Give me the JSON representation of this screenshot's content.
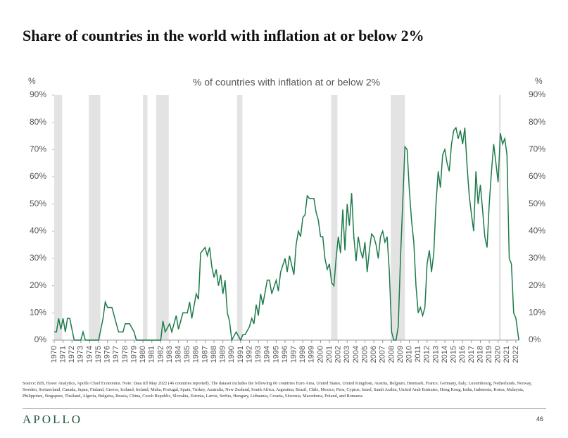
{
  "chart_data": {
    "type": "line",
    "title": "Share of countries in the world with inflation at or below 2%",
    "subtitle": "% of countries with inflation at or below 2%",
    "y_label": "%",
    "y2_label": "%",
    "x": [
      1970,
      1970.25,
      1970.5,
      1970.75,
      1971,
      1971.25,
      1971.5,
      1971.75,
      1972,
      1972.25,
      1972.75,
      1973,
      1973.25,
      1973.5,
      1974,
      1975,
      1975.5,
      1975.75,
      1976,
      1976.5,
      1977,
      1977.25,
      1977.75,
      1978,
      1978.5,
      1979,
      1979.25,
      1980,
      1981,
      1982,
      1982.25,
      1982.5,
      1983,
      1983.25,
      1983.75,
      1984,
      1984.5,
      1985,
      1985.25,
      1985.5,
      1986,
      1986.25,
      1986.5,
      1986.75,
      1987,
      1987.25,
      1987.5,
      1987.75,
      1988,
      1988.25,
      1988.5,
      1988.75,
      1989,
      1989.25,
      1989.5,
      1989.75,
      1990,
      1990.5,
      1991,
      1991.25,
      1991.5,
      1992,
      1992.25,
      1992.5,
      1992.75,
      1993,
      1993.25,
      1993.5,
      1994,
      1994.25,
      1994.5,
      1995,
      1995.25,
      1995.5,
      1996,
      1996.25,
      1996.5,
      1997,
      1997.25,
      1997.5,
      1997.75,
      1998,
      1998.25,
      1998.5,
      1998.75,
      1999,
      1999.25,
      1999.5,
      1999.75,
      2000,
      2000.25,
      2000.5,
      2000.75,
      2001,
      2001.25,
      2001.5,
      2001.75,
      2002,
      2002.25,
      2002.5,
      2002.75,
      2003,
      2003.25,
      2003.5,
      2003.75,
      2004,
      2004.25,
      2004.5,
      2004.75,
      2005,
      2005.25,
      2005.5,
      2005.75,
      2006,
      2006.25,
      2006.5,
      2006.75,
      2007,
      2007.25,
      2007.5,
      2007.75,
      2008,
      2008.25,
      2008.5,
      2008.75,
      2009,
      2009.25,
      2009.5,
      2009.75,
      2010,
      2010.25,
      2010.5,
      2010.75,
      2011,
      2011.25,
      2011.5,
      2011.75,
      2012,
      2012.25,
      2012.5,
      2012.75,
      2013,
      2013.25,
      2013.5,
      2013.75,
      2014,
      2014.25,
      2014.5,
      2014.75,
      2015,
      2015.25,
      2015.5,
      2015.75,
      2016,
      2016.25,
      2016.5,
      2016.75,
      2017,
      2017.25,
      2017.5,
      2017.75,
      2018,
      2018.25,
      2018.5,
      2018.75,
      2019,
      2019.25,
      2019.5,
      2019.75,
      2020,
      2020.25,
      2020.5,
      2020.75,
      2021,
      2021.25,
      2021.5,
      2021.75,
      2022,
      2022.25,
      2022.33
    ],
    "series": [
      {
        "name": "% of countries with inflation at or below 2%",
        "color": "#1e7b4a",
        "values": [
          3,
          3,
          8,
          4,
          8,
          3,
          8,
          8,
          4,
          0,
          0,
          0,
          3,
          0,
          0,
          0,
          8,
          14,
          12,
          12,
          6,
          3,
          3,
          6,
          6,
          3,
          0,
          0,
          0,
          0,
          7,
          3,
          6,
          3,
          9,
          4,
          10,
          10,
          14,
          8,
          17,
          15,
          32,
          33,
          34,
          31,
          34,
          27,
          23,
          26,
          20,
          24,
          17,
          22,
          10,
          7,
          0,
          3,
          0,
          2,
          2,
          5,
          8,
          6,
          13,
          9,
          17,
          13,
          22,
          22,
          17,
          22,
          18,
          25,
          30,
          25,
          31,
          24,
          35,
          40,
          38,
          45,
          46,
          53,
          52,
          52,
          52,
          47,
          44,
          38,
          38,
          30,
          26,
          28,
          21,
          20,
          30,
          38,
          32,
          48,
          33,
          50,
          42,
          54,
          38,
          29,
          38,
          33,
          30,
          36,
          25,
          33,
          39,
          38,
          35,
          30,
          38,
          40,
          36,
          38,
          25,
          3,
          0,
          0,
          5,
          30,
          50,
          71,
          70,
          55,
          44,
          36,
          20,
          10,
          12,
          9,
          12,
          28,
          33,
          25,
          32,
          50,
          62,
          56,
          68,
          70,
          65,
          62,
          72,
          77,
          78,
          74,
          77,
          72,
          78,
          64,
          53,
          46,
          40,
          62,
          50,
          57,
          48,
          38,
          34,
          50,
          62,
          72,
          65,
          58,
          76,
          72,
          74,
          68,
          30,
          28,
          10,
          8,
          2,
          0
        ]
      }
    ],
    "xlim": [
      1970,
      2022.4
    ],
    "xticks": [
      1970,
      1971,
      1972,
      1973,
      1974,
      1975,
      1976,
      1977,
      1978,
      1979,
      1980,
      1981,
      1982,
      1983,
      1984,
      1985,
      1986,
      1987,
      1988,
      1989,
      1990,
      1991,
      1992,
      1993,
      1994,
      1995,
      1996,
      1997,
      1998,
      1999,
      2000,
      2001,
      2002,
      2003,
      2004,
      2005,
      2006,
      2007,
      2008,
      2009,
      2010,
      2011,
      2012,
      2013,
      2014,
      2015,
      2016,
      2017,
      2018,
      2019,
      2020,
      2021,
      2022
    ],
    "ylim": [
      0,
      90
    ],
    "yticks": [
      {
        "value": 0,
        "label": "0%"
      },
      {
        "value": 10,
        "label": "10%"
      },
      {
        "value": 20,
        "label": "20%"
      },
      {
        "value": 30,
        "label": "30%"
      },
      {
        "value": 40,
        "label": "40%"
      },
      {
        "value": 50,
        "label": "50%"
      },
      {
        "value": 60,
        "label": "60%"
      },
      {
        "value": 70,
        "label": "70%"
      },
      {
        "value": 80,
        "label": "80%"
      },
      {
        "value": 90,
        "label": "90%"
      }
    ],
    "y2lim": [
      0,
      90
    ],
    "y2ticks": [
      {
        "value": 0,
        "label": "0%"
      },
      {
        "value": 10,
        "label": "10%"
      },
      {
        "value": 20,
        "label": "20%"
      },
      {
        "value": 30,
        "label": "30%"
      },
      {
        "value": 40,
        "label": "40%"
      },
      {
        "value": 50,
        "label": "50%"
      },
      {
        "value": 60,
        "label": "60%"
      },
      {
        "value": 70,
        "label": "70%"
      },
      {
        "value": 80,
        "label": "80%"
      },
      {
        "value": 90,
        "label": "90%"
      }
    ],
    "shaded_periods": [
      [
        1970,
        1970.9
      ],
      [
        1973.9,
        1975.2
      ],
      [
        1980,
        1980.5
      ],
      [
        1981.5,
        1982.9
      ],
      [
        1990.6,
        1991.2
      ],
      [
        2001.2,
        2001.9
      ],
      [
        2007.9,
        2009.5
      ],
      [
        2020.1,
        2020.3
      ]
    ],
    "shade_color": "#e3e3e3",
    "source": "Source: BIS, Haver Analytics, Apollo Chief Economist. Note: Data till May 2022 (46 countries reported). The dataset includes the following 60 countries Euro Area, United States, United Kingdom, Austria, Belgium, Denmark, France, Germany, Italy, Luxembourg, Netherlands, Norway, Sweden, Switzerland, Canada, Japan, Finland, Greece, Iceland, Ireland, Malta, Portugal, Spain, Turkey, Australia, New Zealand, South Africa, Argentina, Brazil, Chile, Mexico, Peru, Cyprus, Israel, Saudi Arabia, United Arab Emirates, Hong Kong, India, Indonesia, Korea, Malaysia, Philippines, Singapore, Thailand, Algeria, Bulgaria, Russia, China, Czech Republic, Slovakia, Estonia, Latvia, Serbia, Hungary, Lithuania, Croatia, Slovenia, Macedonia, Poland, and Romania",
    "logo": "APOLLO",
    "page_number": "46"
  }
}
